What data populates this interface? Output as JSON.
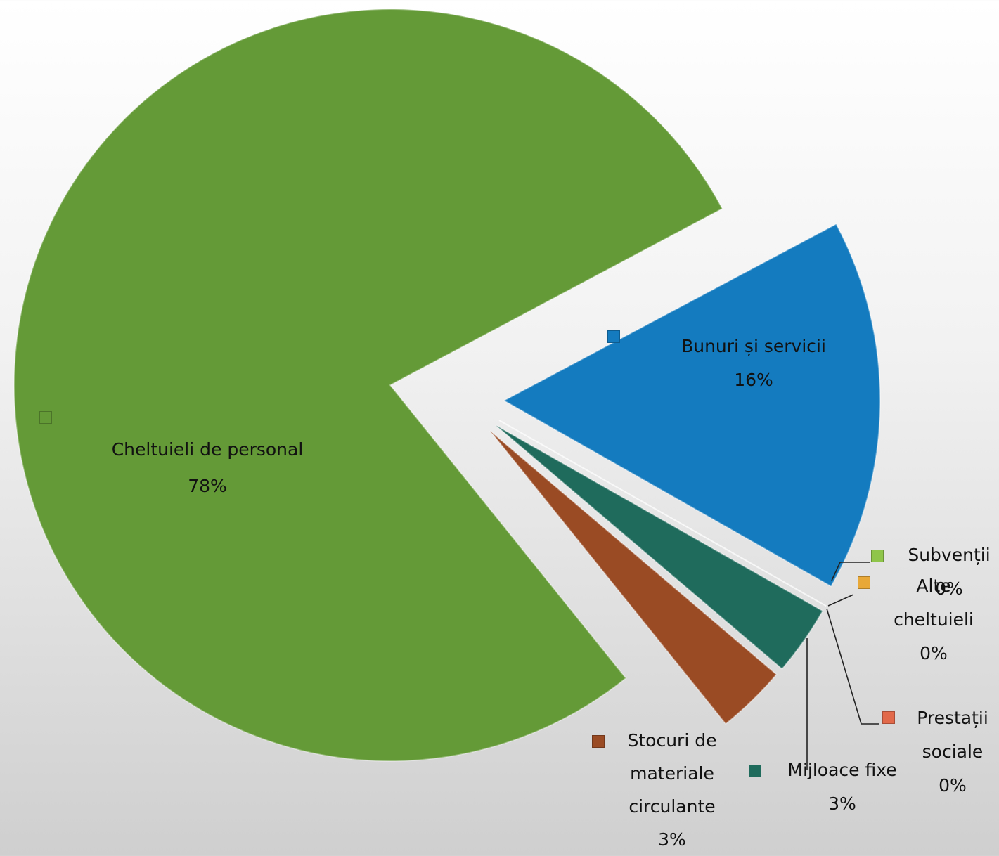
{
  "chart_data": {
    "type": "pie",
    "categories": [
      "Bunuri și servicii",
      "Subvenții",
      "Alte cheltuieli",
      "Prestații sociale",
      "Mijloace fixe",
      "Stocuri de materiale circulante",
      "Cheltuieli de personal"
    ],
    "values": [
      16,
      0,
      0,
      0,
      3,
      3,
      78
    ],
    "value_labels": [
      "16%",
      "0%",
      "0%",
      "0%",
      "3%",
      "3%",
      "78%"
    ],
    "colors": [
      "#147bbf",
      "#8fc54a",
      "#e8a838",
      "#e2694a",
      "#1f6b5c",
      "#9a4b24",
      "#649a37"
    ]
  }
}
